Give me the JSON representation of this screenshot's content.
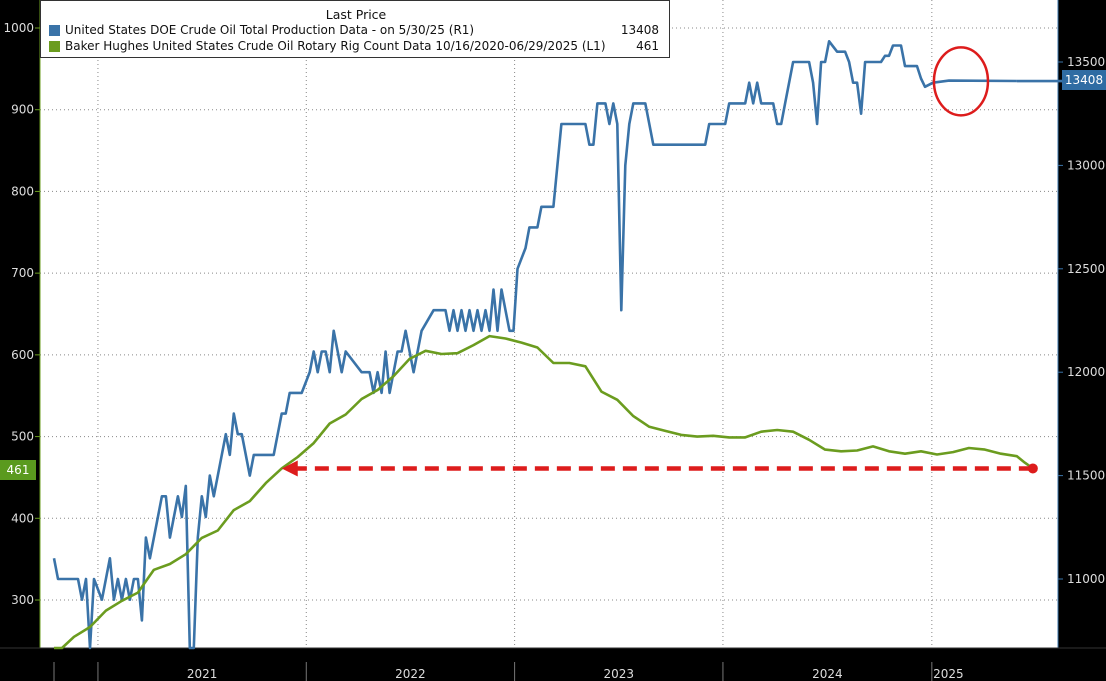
{
  "legend": {
    "title": "Last Price",
    "series": [
      {
        "label": "United States DOE Crude Oil Total Production Data -  on 5/30/25  (R1)",
        "value": "13408",
        "color": "#3a73a8"
      },
      {
        "label": "Baker Hughes United States Crude Oil Rotary Rig Count Data 10/16/2020-06/29/2025   (L1)",
        "value": "461",
        "color": "#6b9c1f"
      }
    ]
  },
  "badges": {
    "left": "461",
    "right": "13408"
  },
  "colors": {
    "production": "#3a73a8",
    "rigs": "#6b9c1f",
    "arrow": "#dd1c1c",
    "circle": "#dd1c1c",
    "background": "#ffffff",
    "frame": "#000000",
    "grid": "#888888"
  },
  "chart_data": {
    "type": "line",
    "x_axis": {
      "type": "date",
      "range": [
        "2020-10-16",
        "2025-06-29"
      ],
      "tick_labels": [
        "2021",
        "2022",
        "2023",
        "2024",
        "2025"
      ]
    },
    "y_left": {
      "range": [
        240,
        1030
      ],
      "ticks": [
        300,
        400,
        500,
        600,
        700,
        800,
        900,
        1000
      ]
    },
    "y_right": {
      "range": [
        10700,
        13610
      ],
      "ticks": [
        11000,
        11500,
        12000,
        12500,
        13000,
        13500
      ]
    },
    "grid": true,
    "legend_position": "top-left",
    "series": [
      {
        "name": "United States DOE Crude Oil Total Production Data",
        "axis": "right",
        "points": [
          [
            "2020-10-16",
            11100
          ],
          [
            "2020-10-23",
            11000
          ],
          [
            "2020-11-27",
            11000
          ],
          [
            "2020-12-04",
            10900
          ],
          [
            "2020-12-11",
            11000
          ],
          [
            "2020-12-18",
            10600
          ],
          [
            "2020-12-25",
            11000
          ],
          [
            "2021-01-08",
            10900
          ],
          [
            "2021-01-22",
            11100
          ],
          [
            "2021-01-29",
            10900
          ],
          [
            "2021-02-05",
            11000
          ],
          [
            "2021-02-12",
            10900
          ],
          [
            "2021-02-19",
            11000
          ],
          [
            "2021-02-26",
            10900
          ],
          [
            "2021-03-05",
            11000
          ],
          [
            "2021-03-12",
            11000
          ],
          [
            "2021-03-19",
            10800
          ],
          [
            "2021-03-26",
            11200
          ],
          [
            "2021-04-02",
            11100
          ],
          [
            "2021-04-16",
            11300
          ],
          [
            "2021-04-23",
            11400
          ],
          [
            "2021-04-30",
            11400
          ],
          [
            "2021-05-07",
            11200
          ],
          [
            "2021-05-14",
            11300
          ],
          [
            "2021-05-21",
            11400
          ],
          [
            "2021-05-28",
            11300
          ],
          [
            "2021-06-04",
            11450
          ],
          [
            "2021-06-11",
            10500
          ],
          [
            "2021-06-18",
            10400
          ],
          [
            "2021-06-25",
            11200
          ],
          [
            "2021-07-02",
            11400
          ],
          [
            "2021-07-09",
            11300
          ],
          [
            "2021-07-16",
            11500
          ],
          [
            "2021-07-23",
            11400
          ],
          [
            "2021-08-06",
            11600
          ],
          [
            "2021-08-13",
            11700
          ],
          [
            "2021-08-20",
            11600
          ],
          [
            "2021-08-27",
            11800
          ],
          [
            "2021-09-03",
            11700
          ],
          [
            "2021-09-10",
            11700
          ],
          [
            "2021-09-17",
            11600
          ],
          [
            "2021-09-24",
            11500
          ],
          [
            "2021-10-01",
            11600
          ],
          [
            "2021-10-08",
            11600
          ],
          [
            "2021-11-05",
            11600
          ],
          [
            "2021-11-12",
            11700
          ],
          [
            "2021-11-19",
            11800
          ],
          [
            "2021-11-26",
            11800
          ],
          [
            "2021-12-03",
            11900
          ],
          [
            "2021-12-10",
            11900
          ],
          [
            "2021-12-24",
            11900
          ],
          [
            "2022-01-07",
            12000
          ],
          [
            "2022-01-14",
            12100
          ],
          [
            "2022-01-21",
            12000
          ],
          [
            "2022-01-28",
            12100
          ],
          [
            "2022-02-04",
            12100
          ],
          [
            "2022-02-11",
            12000
          ],
          [
            "2022-02-18",
            12200
          ],
          [
            "2022-02-25",
            12100
          ],
          [
            "2022-03-04",
            12000
          ],
          [
            "2022-03-11",
            12100
          ],
          [
            "2022-04-08",
            12000
          ],
          [
            "2022-04-15",
            12000
          ],
          [
            "2022-04-22",
            12000
          ],
          [
            "2022-04-29",
            11900
          ],
          [
            "2022-05-06",
            12000
          ],
          [
            "2022-05-13",
            11900
          ],
          [
            "2022-05-20",
            12100
          ],
          [
            "2022-05-27",
            11900
          ],
          [
            "2022-06-03",
            12000
          ],
          [
            "2022-06-10",
            12100
          ],
          [
            "2022-06-17",
            12100
          ],
          [
            "2022-06-24",
            12200
          ],
          [
            "2022-07-01",
            12100
          ],
          [
            "2022-07-08",
            12000
          ],
          [
            "2022-07-15",
            12100
          ],
          [
            "2022-07-22",
            12200
          ],
          [
            "2022-08-12",
            12300
          ],
          [
            "2022-09-02",
            12300
          ],
          [
            "2022-09-09",
            12200
          ],
          [
            "2022-09-16",
            12300
          ],
          [
            "2022-09-23",
            12200
          ],
          [
            "2022-09-30",
            12300
          ],
          [
            "2022-10-07",
            12200
          ],
          [
            "2022-10-14",
            12300
          ],
          [
            "2022-10-21",
            12200
          ],
          [
            "2022-10-28",
            12300
          ],
          [
            "2022-11-04",
            12200
          ],
          [
            "2022-11-11",
            12300
          ],
          [
            "2022-11-18",
            12200
          ],
          [
            "2022-11-25",
            12400
          ],
          [
            "2022-12-02",
            12200
          ],
          [
            "2022-12-09",
            12400
          ],
          [
            "2022-12-16",
            12300
          ],
          [
            "2022-12-23",
            12200
          ],
          [
            "2022-12-30",
            12200
          ],
          [
            "2023-01-06",
            12500
          ],
          [
            "2023-01-20",
            12600
          ],
          [
            "2023-01-27",
            12700
          ],
          [
            "2023-02-10",
            12700
          ],
          [
            "2023-02-17",
            12800
          ],
          [
            "2023-03-10",
            12800
          ],
          [
            "2023-03-17",
            13000
          ],
          [
            "2023-03-24",
            13200
          ],
          [
            "2023-05-05",
            13200
          ],
          [
            "2023-05-12",
            13100
          ],
          [
            "2023-05-19",
            13100
          ],
          [
            "2023-05-26",
            13300
          ],
          [
            "2023-06-09",
            13300
          ],
          [
            "2023-06-16",
            13200
          ],
          [
            "2023-06-23",
            13300
          ],
          [
            "2023-06-30",
            13200
          ],
          [
            "2023-07-07",
            12300
          ],
          [
            "2023-07-14",
            13000
          ],
          [
            "2023-07-21",
            13200
          ],
          [
            "2023-07-28",
            13300
          ],
          [
            "2023-08-18",
            13300
          ],
          [
            "2023-08-25",
            13200
          ],
          [
            "2023-09-01",
            13100
          ],
          [
            "2023-09-08",
            13100
          ],
          [
            "2023-12-01",
            13100
          ],
          [
            "2023-12-08",
            13200
          ],
          [
            "2024-01-05",
            13200
          ],
          [
            "2024-01-12",
            13300
          ],
          [
            "2024-02-09",
            13300
          ],
          [
            "2024-02-16",
            13400
          ],
          [
            "2024-02-23",
            13300
          ],
          [
            "2024-03-01",
            13400
          ],
          [
            "2024-03-08",
            13300
          ],
          [
            "2024-03-15",
            13300
          ],
          [
            "2024-03-29",
            13300
          ],
          [
            "2024-04-05",
            13200
          ],
          [
            "2024-04-12",
            13200
          ],
          [
            "2024-04-19",
            13300
          ],
          [
            "2024-05-03",
            13500
          ],
          [
            "2024-05-31",
            13500
          ],
          [
            "2024-06-07",
            13400
          ],
          [
            "2024-06-14",
            13200
          ],
          [
            "2024-06-21",
            13500
          ],
          [
            "2024-06-28",
            13500
          ],
          [
            "2024-07-05",
            13600
          ],
          [
            "2024-07-19",
            13550
          ],
          [
            "2024-08-02",
            13550
          ],
          [
            "2024-08-09",
            13500
          ],
          [
            "2024-08-16",
            13400
          ],
          [
            "2024-08-23",
            13400
          ],
          [
            "2024-08-30",
            13250
          ],
          [
            "2024-09-06",
            13500
          ],
          [
            "2024-10-04",
            13500
          ],
          [
            "2024-10-11",
            13530
          ],
          [
            "2024-10-18",
            13530
          ],
          [
            "2024-10-25",
            13580
          ],
          [
            "2024-11-08",
            13580
          ],
          [
            "2024-11-15",
            13480
          ],
          [
            "2024-12-06",
            13480
          ],
          [
            "2024-12-13",
            13420
          ],
          [
            "2024-12-20",
            13380
          ],
          [
            "2025-01-03",
            13400
          ],
          [
            "2025-01-31",
            13410
          ],
          [
            "2025-05-30",
            13408
          ]
        ]
      },
      {
        "name": "Baker Hughes United States Crude Oil Rotary Rig Count",
        "axis": "left",
        "points": [
          [
            "2020-10-16",
            226
          ],
          [
            "2020-10-30",
            240
          ],
          [
            "2020-11-20",
            255
          ],
          [
            "2020-12-18",
            267
          ],
          [
            "2021-01-15",
            287
          ],
          [
            "2021-02-12",
            299
          ],
          [
            "2021-03-12",
            309
          ],
          [
            "2021-04-09",
            337
          ],
          [
            "2021-05-07",
            344
          ],
          [
            "2021-06-04",
            356
          ],
          [
            "2021-07-02",
            376
          ],
          [
            "2021-07-30",
            385
          ],
          [
            "2021-08-27",
            410
          ],
          [
            "2021-09-24",
            421
          ],
          [
            "2021-10-22",
            443
          ],
          [
            "2021-11-19",
            461
          ],
          [
            "2021-12-17",
            475
          ],
          [
            "2022-01-14",
            492
          ],
          [
            "2022-02-11",
            516
          ],
          [
            "2022-03-11",
            527
          ],
          [
            "2022-04-08",
            546
          ],
          [
            "2022-05-06",
            557
          ],
          [
            "2022-06-03",
            574
          ],
          [
            "2022-07-01",
            595
          ],
          [
            "2022-07-29",
            605
          ],
          [
            "2022-08-26",
            601
          ],
          [
            "2022-09-23",
            602
          ],
          [
            "2022-10-21",
            612
          ],
          [
            "2022-11-18",
            623
          ],
          [
            "2022-12-16",
            620
          ],
          [
            "2023-01-13",
            615
          ],
          [
            "2023-02-10",
            609
          ],
          [
            "2023-03-10",
            590
          ],
          [
            "2023-04-07",
            590
          ],
          [
            "2023-05-05",
            586
          ],
          [
            "2023-06-02",
            555
          ],
          [
            "2023-06-30",
            545
          ],
          [
            "2023-07-28",
            525
          ],
          [
            "2023-08-25",
            512
          ],
          [
            "2023-09-22",
            507
          ],
          [
            "2023-10-20",
            502
          ],
          [
            "2023-11-17",
            500
          ],
          [
            "2023-12-15",
            501
          ],
          [
            "2024-01-12",
            499
          ],
          [
            "2024-02-09",
            499
          ],
          [
            "2024-03-08",
            506
          ],
          [
            "2024-04-05",
            508
          ],
          [
            "2024-05-03",
            506
          ],
          [
            "2024-05-31",
            496
          ],
          [
            "2024-06-28",
            484
          ],
          [
            "2024-07-26",
            482
          ],
          [
            "2024-08-23",
            483
          ],
          [
            "2024-09-20",
            488
          ],
          [
            "2024-10-18",
            482
          ],
          [
            "2024-11-15",
            479
          ],
          [
            "2024-12-13",
            482
          ],
          [
            "2025-01-10",
            478
          ],
          [
            "2025-02-07",
            481
          ],
          [
            "2025-03-07",
            486
          ],
          [
            "2025-04-04",
            484
          ],
          [
            "2025-05-02",
            479
          ],
          [
            "2025-05-30",
            476
          ],
          [
            "2025-06-13",
            468
          ],
          [
            "2025-06-27",
            461
          ]
        ]
      }
    ],
    "annotations": {
      "arrow": {
        "from": [
          "2025-06-27",
          461
        ],
        "to": [
          "2021-11-19",
          461
        ],
        "style": "dashed"
      },
      "circle": {
        "center": [
          "2025-02-07",
          13450
        ]
      }
    }
  }
}
